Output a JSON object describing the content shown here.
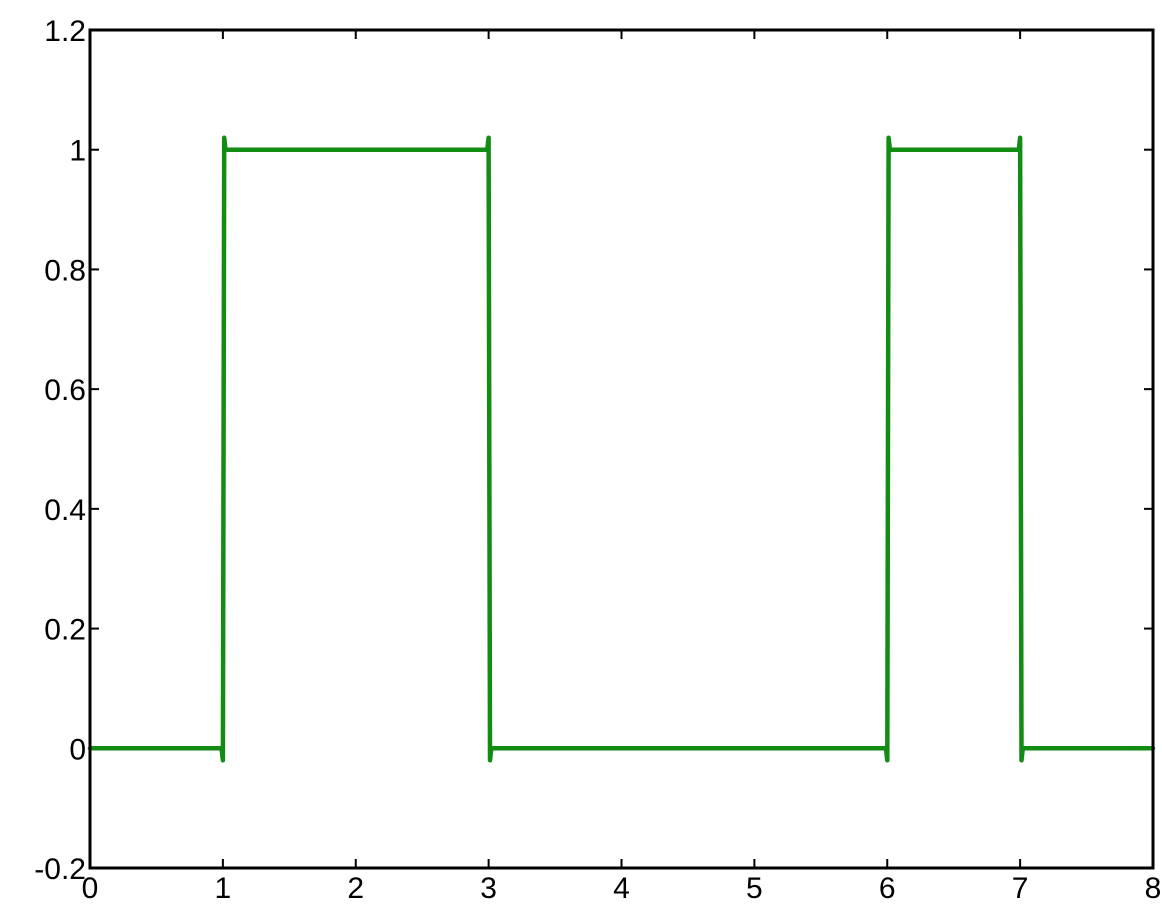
{
  "chart_data": {
    "type": "line",
    "title": "",
    "xlabel": "",
    "ylabel": "",
    "xlim": [
      0,
      8
    ],
    "ylim": [
      -0.2,
      1.2
    ],
    "grid": false,
    "x_ticks": [
      0,
      1,
      2,
      3,
      4,
      5,
      6,
      7,
      8
    ],
    "y_ticks": [
      -0.2,
      0,
      0.2,
      0.4,
      0.6,
      0.8,
      1,
      1.2
    ],
    "x_tick_labels": [
      "0",
      "1",
      "2",
      "3",
      "4",
      "5",
      "6",
      "7",
      "8"
    ],
    "y_tick_labels": [
      "-0.2",
      "0",
      "0.2",
      "0.4",
      "0.6",
      "0.8",
      "1",
      "1.2"
    ],
    "series": [
      {
        "color": "#128c12",
        "x": [
          0,
          0.99,
          1.0,
          1.01,
          1.02,
          2.98,
          2.99,
          3.0,
          3.01,
          3.02,
          5.98,
          5.99,
          6.0,
          6.01,
          6.02,
          6.98,
          6.99,
          7.0,
          7.01,
          7.02,
          8.0
        ],
        "y": [
          0,
          0,
          -0.02,
          1.02,
          1.0,
          1.0,
          1.0,
          1.02,
          -0.02,
          0,
          0,
          0,
          -0.02,
          1.02,
          1.0,
          1.0,
          1.0,
          1.02,
          -0.02,
          0,
          0
        ]
      }
    ]
  }
}
